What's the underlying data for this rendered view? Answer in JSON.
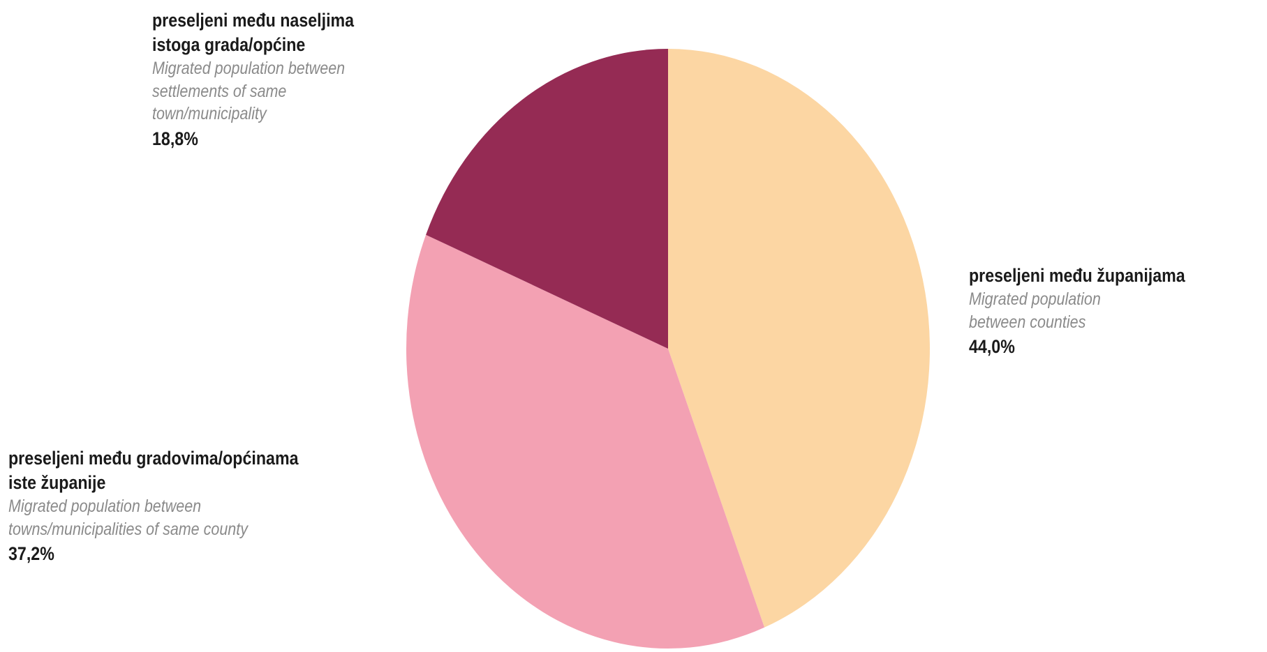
{
  "chart_data": {
    "type": "pie",
    "slices": [
      {
        "label_hr": "preseljeni među županijama",
        "label_en": "Migrated population between counties",
        "value": 44.0,
        "value_text": "44,0%",
        "color": "#fcd6a3"
      },
      {
        "label_hr": "preseljeni među gradovima/općinama iste županije",
        "label_en": "Migrated population between towns/municipalities of same county",
        "value": 37.2,
        "value_text": "37,2%",
        "color": "#f3a1b3"
      },
      {
        "label_hr": "preseljeni među naseljima istoga grada/općine",
        "label_en": "Migrated population between settlements of same town/municipality",
        "value": 18.8,
        "value_text": "18,8%",
        "color": "#952b54"
      }
    ],
    "start_angle": "12 o'clock",
    "direction": "clockwise"
  },
  "labels": {
    "counties": {
      "hr_lines": [
        "preseljeni među županijama"
      ],
      "en_lines": [
        "Migrated population",
        "between counties"
      ],
      "pct": "44,0%"
    },
    "towns": {
      "hr_lines": [
        "preseljeni među gradovima/općinama",
        "iste županije"
      ],
      "en_lines": [
        "Migrated population between",
        "towns/municipalities of same county"
      ],
      "pct": "37,2%"
    },
    "settlements": {
      "hr_lines": [
        "preseljeni među naseljima",
        "istoga grada/općine"
      ],
      "en_lines": [
        "Migrated population between",
        "settlements of same",
        "town/municipality"
      ],
      "pct": "18,8%"
    }
  }
}
